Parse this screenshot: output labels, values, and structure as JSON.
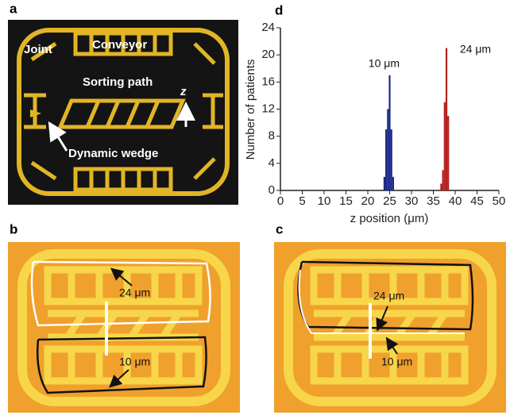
{
  "panels": {
    "a": {
      "label": "a",
      "joint": "Joint",
      "conveyor": "Conveyor",
      "sorting_path": "Sorting path",
      "z": "z",
      "dynamic_wedge": "Dynamic wedge"
    },
    "b": {
      "label": "b",
      "annotations": [
        "24 μm",
        "10 μm"
      ]
    },
    "c": {
      "label": "c",
      "annotations": [
        "24 μm",
        "10 μm"
      ]
    }
  },
  "chart_data": {
    "type": "histogram",
    "label": "d",
    "xlabel": "z position (μm)",
    "ylabel": "Number of patients",
    "xlim": [
      0,
      50
    ],
    "xticks": [
      0,
      5,
      10,
      15,
      20,
      25,
      30,
      35,
      40,
      45,
      50
    ],
    "ylim": [
      0,
      24
    ],
    "yticks": [
      0,
      4,
      8,
      12,
      16,
      20,
      24
    ],
    "annotations": [
      "10 μm",
      "24 μm"
    ],
    "series": [
      {
        "color": "#1c2a8c",
        "bins": [
          23.6,
          24.0,
          24.4,
          24.8,
          25.2,
          25.6,
          26.0
        ],
        "values": [
          2,
          9,
          12,
          17,
          9,
          2
        ]
      },
      {
        "color": "#b3201c",
        "bins": [
          36.6,
          37.0,
          37.4,
          37.8,
          38.2,
          38.6
        ],
        "values": [
          1,
          3,
          13,
          21,
          11
        ]
      }
    ]
  }
}
